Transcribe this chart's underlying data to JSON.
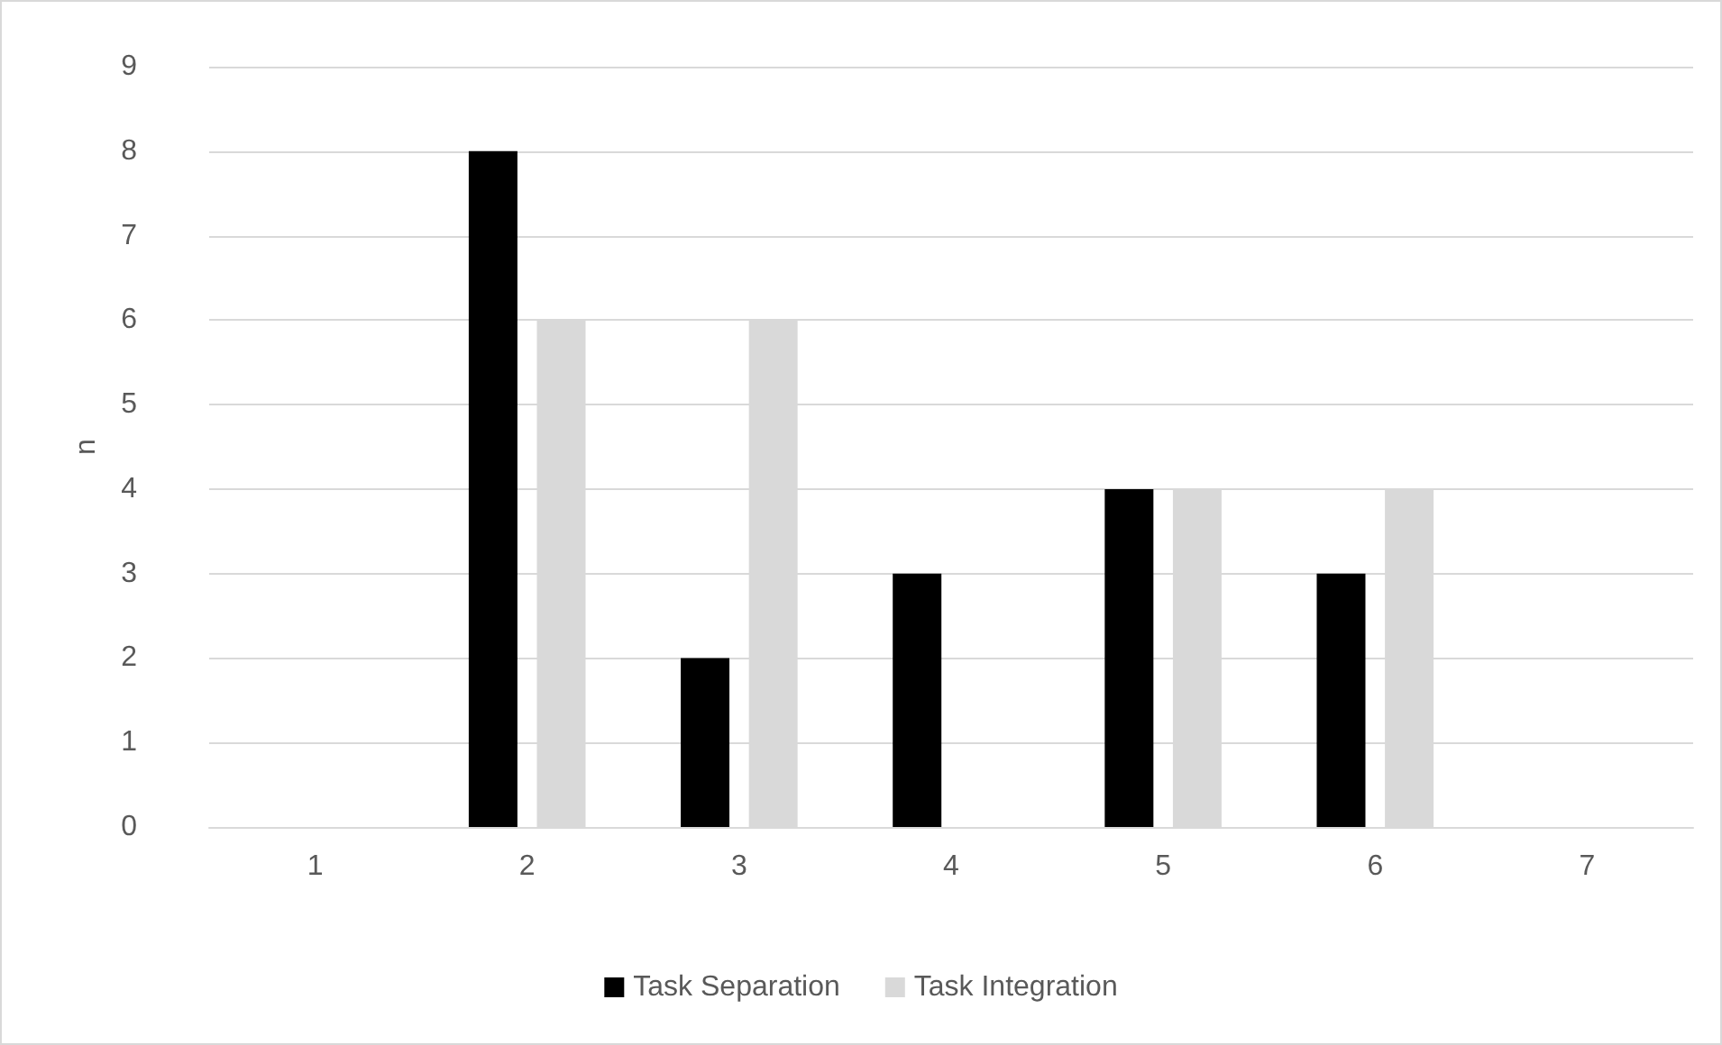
{
  "chart_data": {
    "type": "bar",
    "ylabel": "n",
    "categories": [
      "1",
      "2",
      "3",
      "4",
      "5",
      "6",
      "7"
    ],
    "series": [
      {
        "name": "Task Separation",
        "color": "#000000",
        "values": [
          0,
          8,
          2,
          3,
          4,
          3,
          0
        ]
      },
      {
        "name": "Task Integration",
        "color": "#d9d9d9",
        "values": [
          0,
          6,
          6,
          0,
          4,
          4,
          0
        ]
      }
    ],
    "ylim": [
      0,
      9
    ],
    "yticks": [
      0,
      1,
      2,
      3,
      4,
      5,
      6,
      7,
      8,
      9
    ],
    "grid": "y",
    "legend": "bottom"
  }
}
